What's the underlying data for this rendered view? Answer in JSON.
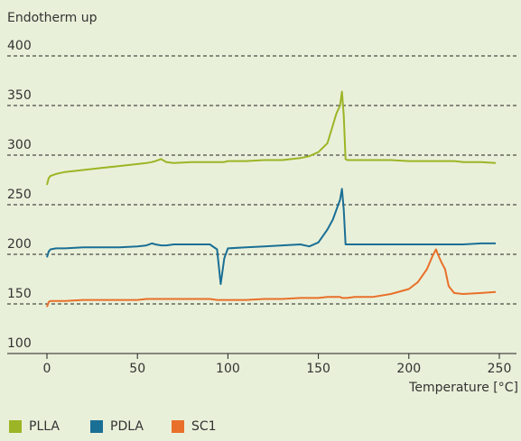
{
  "chart_data": {
    "type": "line",
    "y_label": "Endotherm up",
    "x_label": "Temperature [°C]",
    "x": [
      0,
      1,
      2,
      5,
      10,
      20,
      30,
      40,
      50,
      55,
      58,
      60,
      63,
      66,
      70,
      80,
      90,
      94,
      96,
      98,
      100,
      110,
      120,
      130,
      140,
      145,
      150,
      155,
      158,
      160,
      162,
      163,
      164,
      165,
      166,
      170,
      180,
      190,
      200,
      205,
      210,
      213,
      215,
      216,
      218,
      220,
      222,
      225,
      230,
      240,
      248
    ],
    "series": [
      {
        "name": "PLLA",
        "color": "#9bb526",
        "values": [
          270,
          277,
          279,
          281,
          283,
          285,
          287,
          289,
          291,
          292,
          293,
          294,
          296,
          293,
          292,
          293,
          293,
          293,
          293,
          293,
          294,
          294,
          295,
          295,
          297,
          299,
          303,
          312,
          330,
          342,
          350,
          364,
          340,
          296,
          295,
          295,
          295,
          295,
          294,
          294,
          294,
          294,
          294,
          294,
          294,
          294,
          294,
          294,
          293,
          293,
          292
        ]
      },
      {
        "name": "PDLA",
        "color": "#1a6f95",
        "values": [
          197,
          203,
          205,
          206,
          206,
          207,
          207,
          207,
          208,
          209,
          211,
          210,
          209,
          209,
          210,
          210,
          210,
          205,
          170,
          196,
          206,
          207,
          208,
          209,
          210,
          208,
          212,
          225,
          235,
          245,
          255,
          266,
          245,
          210,
          210,
          210,
          210,
          210,
          210,
          210,
          210,
          210,
          210,
          210,
          210,
          210,
          210,
          210,
          210,
          211,
          211
        ]
      },
      {
        "name": "SC1",
        "color": "#e8702a",
        "values": [
          147,
          152,
          153,
          153,
          153,
          154,
          154,
          154,
          154,
          155,
          155,
          155,
          155,
          155,
          155,
          155,
          155,
          154,
          154,
          154,
          154,
          154,
          155,
          155,
          156,
          156,
          156,
          157,
          157,
          157,
          157,
          156,
          156,
          156,
          156,
          157,
          157,
          160,
          165,
          172,
          185,
          198,
          205,
          200,
          192,
          185,
          168,
          161,
          160,
          161,
          162
        ]
      }
    ],
    "xlim": [
      0,
      250
    ],
    "xticks": [
      0,
      50,
      100,
      150,
      200,
      250
    ],
    "ylim": [
      100,
      400
    ],
    "yticks": [
      100,
      150,
      200,
      250,
      300,
      350,
      400
    ],
    "grid": true,
    "grid_style": "dashed",
    "legend": "bottom"
  }
}
